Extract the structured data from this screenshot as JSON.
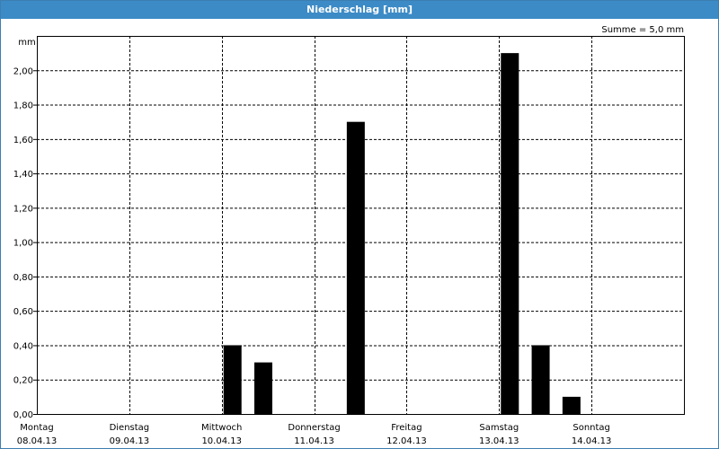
{
  "window": {
    "title": "Niederschlag [mm]"
  },
  "chart_data": {
    "type": "bar",
    "title": "Niederschlag [mm]",
    "ylabel": "mm",
    "annotation": "Summe = 5,0 mm",
    "ylim": [
      0,
      2.2
    ],
    "yticks": [
      0,
      0.2,
      0.4,
      0.6,
      0.8,
      1.0,
      1.2,
      1.4,
      1.6,
      1.8,
      2.0
    ],
    "ytick_labels": [
      "0,00",
      "0,20",
      "0,40",
      "0,60",
      "0,80",
      "1,00",
      "1,20",
      "1,40",
      "1,60",
      "1,80",
      "2,00"
    ],
    "days": [
      {
        "name": "Montag",
        "date": "08.04.13"
      },
      {
        "name": "Dienstag",
        "date": "09.04.13"
      },
      {
        "name": "Mittwoch",
        "date": "10.04.13"
      },
      {
        "name": "Donnerstag",
        "date": "11.04.13"
      },
      {
        "name": "Freitag",
        "date": "12.04.13"
      },
      {
        "name": "Samstag",
        "date": "13.04.13"
      },
      {
        "name": "Sonntag",
        "date": "14.04.13"
      }
    ],
    "x": [
      "10.04.13 00:00",
      "10.04.13 08:00",
      "11.04.13 08:00",
      "13.04.13 00:00",
      "13.04.13 08:00",
      "13.04.13 16:00"
    ],
    "values": [
      0.4,
      0.3,
      1.7,
      2.1,
      0.4,
      0.1
    ],
    "grid": true,
    "colors": {
      "bar": "#000000",
      "grid": "#000000",
      "title_bar": "#3c8bc6"
    }
  }
}
